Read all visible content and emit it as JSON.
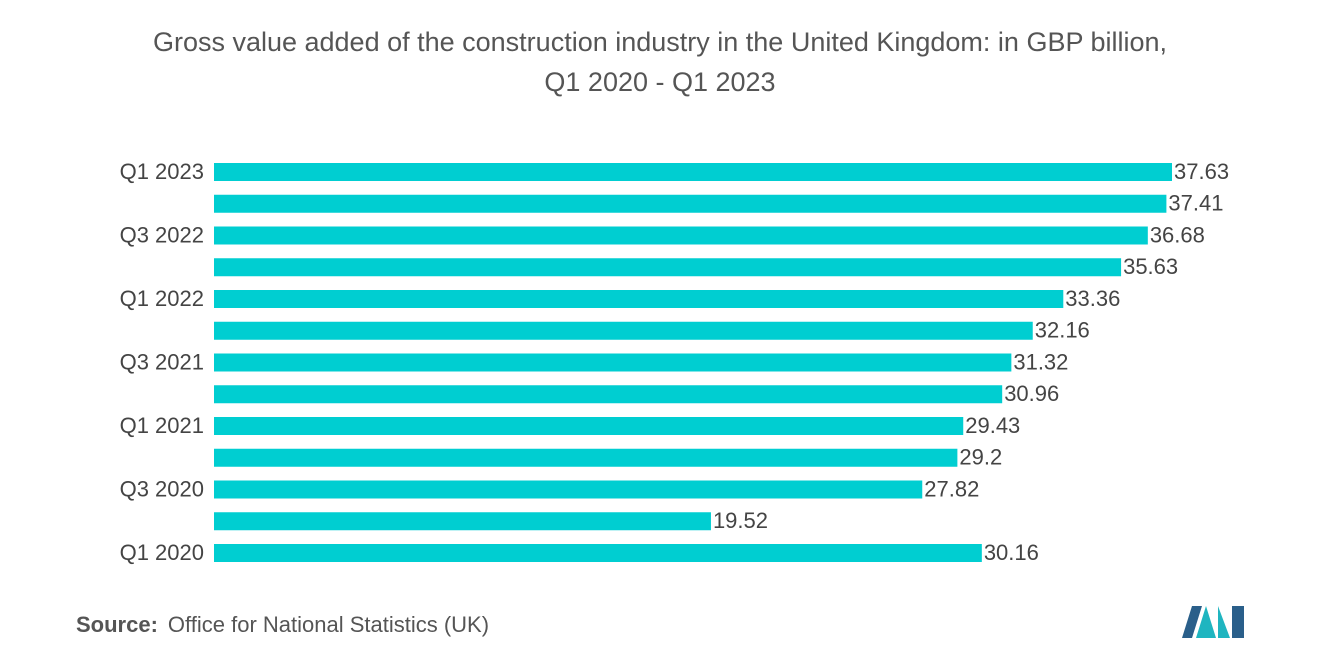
{
  "chart_data": {
    "type": "bar",
    "orientation": "horizontal",
    "title": "Gross value added of the construction industry in the United Kingdom: in GBP billion,\nQ1 2020 - Q1 2023",
    "categories": [
      "Q1 2020",
      null,
      "Q3 2020",
      null,
      "Q1 2021",
      null,
      "Q3 2021",
      null,
      "Q1 2022",
      null,
      "Q3 2022",
      null,
      "Q1 2023"
    ],
    "values": [
      30.16,
      19.52,
      27.82,
      29.2,
      29.43,
      30.96,
      31.32,
      32.16,
      33.36,
      35.63,
      36.68,
      37.41,
      37.63
    ],
    "color": "#00ced1",
    "source_label": "Source:",
    "source": "Office for National Statistics (UK)"
  }
}
